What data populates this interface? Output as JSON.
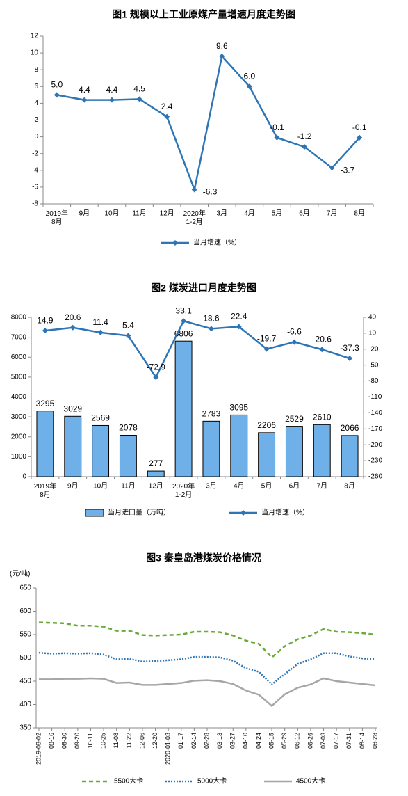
{
  "chart_data": [
    {
      "type": "line",
      "title": "图1  规模以上工业原煤产量增速月度走势图",
      "categories": [
        "2019年\n8月",
        "9月",
        "10月",
        "11月",
        "12月",
        "2020年\n1-2月",
        "3月",
        "4月",
        "5月",
        "6月",
        "7月",
        "8月"
      ],
      "series": [
        {
          "name": "当月增速（%）",
          "color": "#2e75b6",
          "marker": "diamond",
          "values": [
            5.0,
            4.4,
            4.4,
            4.5,
            2.4,
            -6.3,
            9.6,
            6.0,
            -0.1,
            -1.2,
            -3.7,
            -0.1
          ],
          "value_labels": [
            "5.0",
            "4.4",
            "4.4",
            "4.5",
            "2.4",
            "-6.3",
            "9.6",
            "6.0",
            "-0.1",
            "-1.2",
            "-3.7",
            "-0.1"
          ]
        }
      ],
      "ylim": [
        -8,
        12
      ],
      "yticks": [
        -8,
        -6,
        -4,
        -2,
        0,
        2,
        4,
        6,
        8,
        10,
        12
      ],
      "data_labels": true
    },
    {
      "type": "bar",
      "title": "图2  煤炭进口月度走势图",
      "categories": [
        "2019年\n8月",
        "9月",
        "10月",
        "11月",
        "12月",
        "2020年\n1-2月",
        "3月",
        "4月",
        "5月",
        "6月",
        "7月",
        "8月"
      ],
      "series": [
        {
          "name": "当月进口量（万吨）",
          "type": "bar",
          "color": "#70b0e8",
          "values": [
            3295,
            3029,
            2569,
            2078,
            277,
            6806,
            2783,
            3095,
            2206,
            2529,
            2610,
            2066
          ]
        },
        {
          "name": "当月增速（%）",
          "type": "line",
          "axis": "y2",
          "color": "#2e75b6",
          "marker": "diamond",
          "values": [
            14.9,
            20.6,
            11.4,
            5.4,
            -72.9,
            33.1,
            18.6,
            22.4,
            -19.7,
            -6.6,
            -20.6,
            -37.3
          ]
        }
      ],
      "ylim": [
        0,
        8000
      ],
      "yticks": [
        0,
        1000,
        2000,
        3000,
        4000,
        5000,
        6000,
        7000,
        8000
      ],
      "y2lim": [
        -260,
        40
      ],
      "y2ticks": [
        -260,
        -230,
        -200,
        -170,
        -140,
        -110,
        -80,
        -50,
        -20,
        10,
        40
      ],
      "data_labels": true
    },
    {
      "type": "line",
      "title": "图3    秦皇岛港煤炭价格情况",
      "y_label": "(元/吨)",
      "categories": [
        "2019-08-02",
        "08-16",
        "08-30",
        "09-20",
        "10-11",
        "10-25",
        "11-08",
        "11-22",
        "12-06",
        "12-20",
        "2020-01-03",
        "01-17",
        "02-14",
        "02-28",
        "03-13",
        "03-27",
        "04-10",
        "04-24",
        "05-15",
        "05-29",
        "06-12",
        "06-26",
        "07-03",
        "07-17",
        "07-31",
        "08-14",
        "08-28"
      ],
      "series": [
        {
          "name": "5500大卡",
          "color": "#6aaa3a",
          "dash": "dashed",
          "values": [
            576,
            575,
            574,
            569,
            569,
            567,
            558,
            558,
            549,
            548,
            549,
            550,
            556,
            556,
            555,
            548,
            537,
            530,
            501,
            525,
            540,
            548,
            562,
            556,
            555,
            553,
            550
          ]
        },
        {
          "name": "5000大卡",
          "color": "#2e75b6",
          "dash": "dotted",
          "values": [
            511,
            509,
            510,
            509,
            510,
            507,
            497,
            498,
            492,
            493,
            495,
            497,
            502,
            502,
            501,
            494,
            478,
            470,
            443,
            465,
            487,
            497,
            510,
            510,
            503,
            499,
            497
          ]
        },
        {
          "name": "4500大卡",
          "color": "#a6a6a6",
          "dash": "solid",
          "values": [
            454,
            454,
            455,
            455,
            456,
            455,
            446,
            447,
            442,
            442,
            444,
            446,
            451,
            452,
            450,
            444,
            430,
            421,
            397,
            422,
            436,
            443,
            456,
            450,
            447,
            444,
            441
          ]
        }
      ],
      "ylim": [
        350,
        650
      ],
      "yticks": [
        350,
        400,
        450,
        500,
        550,
        600,
        650
      ],
      "data_labels": false
    }
  ]
}
